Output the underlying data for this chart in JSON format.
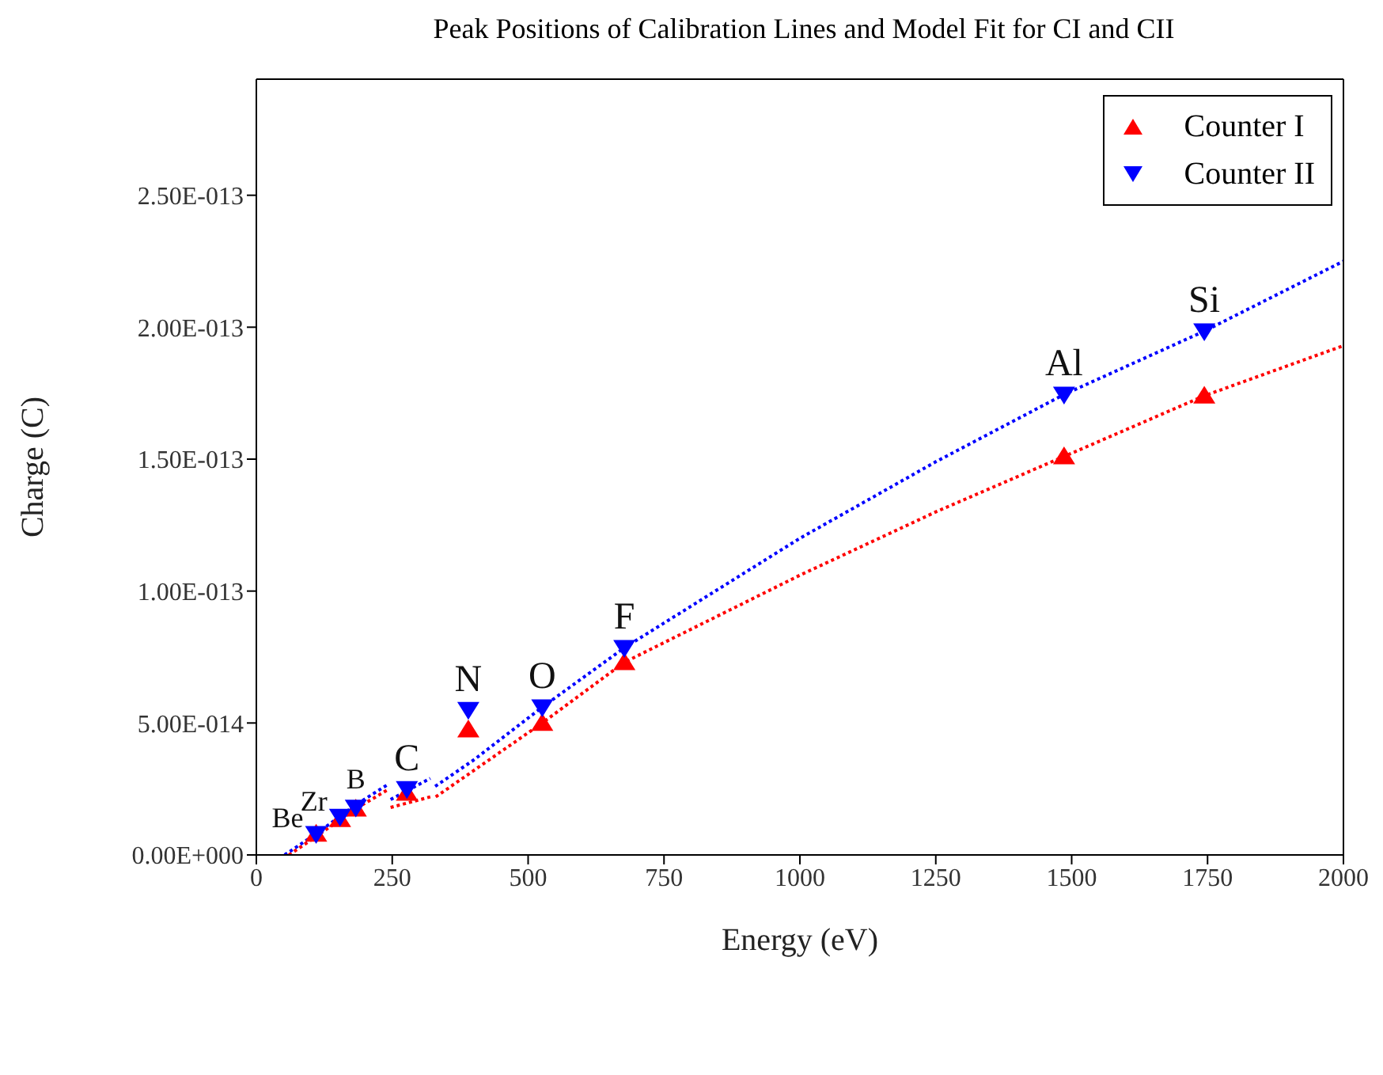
{
  "chart_data": {
    "type": "scatter",
    "title": "Peak Positions of Calibration Lines and Model Fit for CI and CII",
    "xlabel": "Energy (eV)",
    "ylabel": "Charge (C)",
    "xlim": [
      0,
      2000
    ],
    "xticks": [
      0,
      250,
      500,
      750,
      1000,
      1250,
      1500,
      1750,
      2000
    ],
    "ylim": [
      0,
      2.94e-13
    ],
    "yticks": [
      {
        "value": 0,
        "label": "0.00E+000"
      },
      {
        "value": 5e-14,
        "label": "5.00E-014"
      },
      {
        "value": 1e-13,
        "label": "1.00E-013"
      },
      {
        "value": 1.5e-13,
        "label": "1.50E-013"
      },
      {
        "value": 2e-13,
        "label": "2.00E-013"
      },
      {
        "value": 2.5e-13,
        "label": "2.50E-013"
      }
    ],
    "grid": false,
    "legend": "top right",
    "series": [
      {
        "name": "Counter I",
        "marker": "triangle",
        "color": "#ff0000",
        "x": [
          110,
          154,
          183,
          277,
          390,
          526,
          677,
          1486,
          1744
        ],
        "values": [
          8e-15,
          1.35e-14,
          1.75e-14,
          2.35e-14,
          4.75e-14,
          5e-14,
          7.3e-14,
          1.51e-13,
          1.74e-13
        ]
      },
      {
        "name": "Counter II",
        "marker": "triangle-down",
        "color": "#0000ff",
        "x": [
          110,
          154,
          183,
          277,
          390,
          526,
          677,
          1486,
          1744
        ],
        "values": [
          8e-15,
          1.45e-14,
          1.8e-14,
          2.5e-14,
          5.5e-14,
          5.6e-14,
          7.85e-14,
          1.745e-13,
          1.985e-13
        ]
      },
      {
        "type": "line",
        "line_style": "dotted",
        "marker": "none",
        "color": "#ff0000",
        "x": [
          60,
          110,
          183,
          240,
          241,
          247,
          320,
          321,
          330,
          400,
          526,
          677,
          1000,
          1250,
          1486,
          1744,
          2000
        ],
        "values": [
          0,
          7e-15,
          1.75e-14,
          2.45e-14,
          null,
          1.8e-14,
          2.2e-14,
          null,
          2.2e-14,
          3.2e-14,
          5e-14,
          7.3e-14,
          1.06e-13,
          1.3e-13,
          1.51e-13,
          1.74e-13,
          1.93e-13
        ]
      },
      {
        "type": "line",
        "line_style": "dotted",
        "marker": "none",
        "color": "#0000ff",
        "x": [
          52,
          110,
          183,
          242,
          243,
          247,
          320,
          321,
          329,
          400,
          526,
          677,
          1000,
          1250,
          1486,
          1744,
          2000
        ],
        "values": [
          0,
          8e-15,
          1.9e-14,
          2.67e-14,
          null,
          2.1e-14,
          2.9e-14,
          null,
          2.6e-14,
          3.6e-14,
          5.6e-14,
          7.85e-14,
          1.2e-13,
          1.49e-13,
          1.745e-13,
          1.985e-13,
          2.25e-13
        ]
      }
    ],
    "annotations": [
      {
        "text": "Be",
        "x": 110,
        "y": 8e-15
      },
      {
        "text": "Zr",
        "x": 154,
        "y": 1.45e-14
      },
      {
        "text": "B",
        "x": 183,
        "y": 1.8e-14
      },
      {
        "text": "C",
        "x": 277,
        "y": 2.5e-14
      },
      {
        "text": "N",
        "x": 390,
        "y": 5.5e-14
      },
      {
        "text": "O",
        "x": 526,
        "y": 5.6e-14
      },
      {
        "text": "F",
        "x": 677,
        "y": 7.85e-14
      },
      {
        "text": "Al",
        "x": 1486,
        "y": 1.745e-13
      },
      {
        "text": "Si",
        "x": 1744,
        "y": 1.985e-13
      }
    ]
  }
}
